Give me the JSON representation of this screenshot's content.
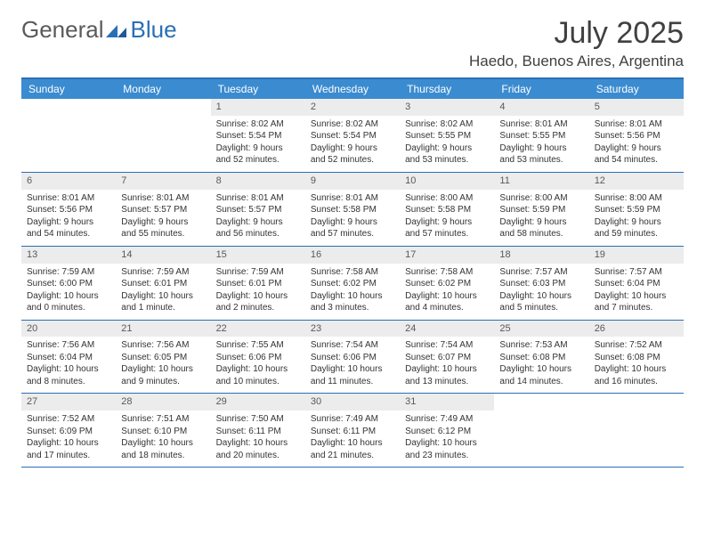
{
  "logo": {
    "text1": "General",
    "text2": "Blue"
  },
  "title": "July 2025",
  "location": "Haedo, Buenos Aires, Argentina",
  "colors": {
    "headerBar": "#3b8bd0",
    "border": "#2a6fb5",
    "dayNumBg": "#ececec",
    "text": "#333333"
  },
  "weekdays": [
    "Sunday",
    "Monday",
    "Tuesday",
    "Wednesday",
    "Thursday",
    "Friday",
    "Saturday"
  ],
  "weeks": [
    [
      null,
      null,
      {
        "n": "1",
        "sr": "8:02 AM",
        "ss": "5:54 PM",
        "dl": "9 hours and 52 minutes."
      },
      {
        "n": "2",
        "sr": "8:02 AM",
        "ss": "5:54 PM",
        "dl": "9 hours and 52 minutes."
      },
      {
        "n": "3",
        "sr": "8:02 AM",
        "ss": "5:55 PM",
        "dl": "9 hours and 53 minutes."
      },
      {
        "n": "4",
        "sr": "8:01 AM",
        "ss": "5:55 PM",
        "dl": "9 hours and 53 minutes."
      },
      {
        "n": "5",
        "sr": "8:01 AM",
        "ss": "5:56 PM",
        "dl": "9 hours and 54 minutes."
      }
    ],
    [
      {
        "n": "6",
        "sr": "8:01 AM",
        "ss": "5:56 PM",
        "dl": "9 hours and 54 minutes."
      },
      {
        "n": "7",
        "sr": "8:01 AM",
        "ss": "5:57 PM",
        "dl": "9 hours and 55 minutes."
      },
      {
        "n": "8",
        "sr": "8:01 AM",
        "ss": "5:57 PM",
        "dl": "9 hours and 56 minutes."
      },
      {
        "n": "9",
        "sr": "8:01 AM",
        "ss": "5:58 PM",
        "dl": "9 hours and 57 minutes."
      },
      {
        "n": "10",
        "sr": "8:00 AM",
        "ss": "5:58 PM",
        "dl": "9 hours and 57 minutes."
      },
      {
        "n": "11",
        "sr": "8:00 AM",
        "ss": "5:59 PM",
        "dl": "9 hours and 58 minutes."
      },
      {
        "n": "12",
        "sr": "8:00 AM",
        "ss": "5:59 PM",
        "dl": "9 hours and 59 minutes."
      }
    ],
    [
      {
        "n": "13",
        "sr": "7:59 AM",
        "ss": "6:00 PM",
        "dl": "10 hours and 0 minutes."
      },
      {
        "n": "14",
        "sr": "7:59 AM",
        "ss": "6:01 PM",
        "dl": "10 hours and 1 minute."
      },
      {
        "n": "15",
        "sr": "7:59 AM",
        "ss": "6:01 PM",
        "dl": "10 hours and 2 minutes."
      },
      {
        "n": "16",
        "sr": "7:58 AM",
        "ss": "6:02 PM",
        "dl": "10 hours and 3 minutes."
      },
      {
        "n": "17",
        "sr": "7:58 AM",
        "ss": "6:02 PM",
        "dl": "10 hours and 4 minutes."
      },
      {
        "n": "18",
        "sr": "7:57 AM",
        "ss": "6:03 PM",
        "dl": "10 hours and 5 minutes."
      },
      {
        "n": "19",
        "sr": "7:57 AM",
        "ss": "6:04 PM",
        "dl": "10 hours and 7 minutes."
      }
    ],
    [
      {
        "n": "20",
        "sr": "7:56 AM",
        "ss": "6:04 PM",
        "dl": "10 hours and 8 minutes."
      },
      {
        "n": "21",
        "sr": "7:56 AM",
        "ss": "6:05 PM",
        "dl": "10 hours and 9 minutes."
      },
      {
        "n": "22",
        "sr": "7:55 AM",
        "ss": "6:06 PM",
        "dl": "10 hours and 10 minutes."
      },
      {
        "n": "23",
        "sr": "7:54 AM",
        "ss": "6:06 PM",
        "dl": "10 hours and 11 minutes."
      },
      {
        "n": "24",
        "sr": "7:54 AM",
        "ss": "6:07 PM",
        "dl": "10 hours and 13 minutes."
      },
      {
        "n": "25",
        "sr": "7:53 AM",
        "ss": "6:08 PM",
        "dl": "10 hours and 14 minutes."
      },
      {
        "n": "26",
        "sr": "7:52 AM",
        "ss": "6:08 PM",
        "dl": "10 hours and 16 minutes."
      }
    ],
    [
      {
        "n": "27",
        "sr": "7:52 AM",
        "ss": "6:09 PM",
        "dl": "10 hours and 17 minutes."
      },
      {
        "n": "28",
        "sr": "7:51 AM",
        "ss": "6:10 PM",
        "dl": "10 hours and 18 minutes."
      },
      {
        "n": "29",
        "sr": "7:50 AM",
        "ss": "6:11 PM",
        "dl": "10 hours and 20 minutes."
      },
      {
        "n": "30",
        "sr": "7:49 AM",
        "ss": "6:11 PM",
        "dl": "10 hours and 21 minutes."
      },
      {
        "n": "31",
        "sr": "7:49 AM",
        "ss": "6:12 PM",
        "dl": "10 hours and 23 minutes."
      },
      null,
      null
    ]
  ],
  "labels": {
    "sunrise": "Sunrise:",
    "sunset": "Sunset:",
    "daylight": "Daylight:"
  }
}
